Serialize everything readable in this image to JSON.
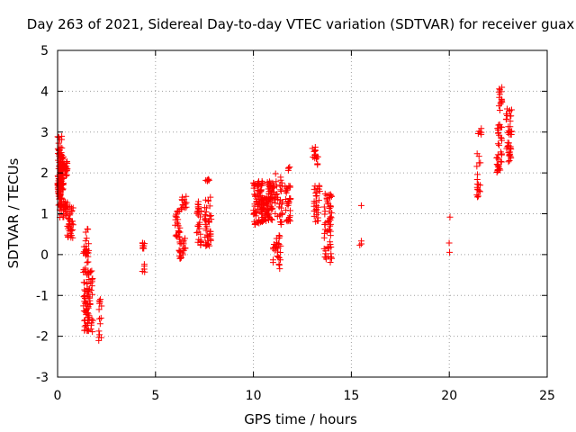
{
  "chart_data": {
    "type": "scatter",
    "title": "Day 263 of 2021, Sidereal Day-to-day VTEC variation (SDTVAR) for receiver guax",
    "xlabel": "GPS time / hours",
    "ylabel": "SDTVAR / TECUs",
    "xlim": [
      0,
      25
    ],
    "ylim": [
      -3,
      5
    ],
    "xticks": [
      0,
      5,
      10,
      15,
      20,
      25
    ],
    "yticks": [
      -3,
      -2,
      -1,
      0,
      1,
      2,
      3,
      4,
      5
    ],
    "grid": true,
    "marker": "+",
    "color": "#ff0000",
    "series": [
      {
        "name": "SDTVAR",
        "clusters": [
          {
            "x": [
              0.0,
              0.25
            ],
            "y": [
              1.2,
              2.9
            ],
            "n": 70
          },
          {
            "x": [
              0.05,
              0.3
            ],
            "y": [
              1.6,
              2.5
            ],
            "n": 50
          },
          {
            "x": [
              0.0,
              0.15
            ],
            "y": [
              1.3,
              1.9
            ],
            "n": 25
          },
          {
            "x": [
              0.1,
              0.5
            ],
            "y": [
              0.9,
              1.3
            ],
            "n": 30
          },
          {
            "x": [
              0.3,
              0.5
            ],
            "y": [
              1.9,
              2.3
            ],
            "n": 20
          },
          {
            "x": [
              0.5,
              0.8
            ],
            "y": [
              0.4,
              1.2
            ],
            "n": 35
          },
          {
            "x": [
              1.3,
              1.6
            ],
            "y": [
              -1.9,
              0.7
            ],
            "n": 70
          },
          {
            "x": [
              1.5,
              1.8
            ],
            "y": [
              -1.9,
              -0.3
            ],
            "n": 40
          },
          {
            "x": [
              2.1,
              2.25
            ],
            "y": [
              -2.2,
              -1.0
            ],
            "n": 14
          },
          {
            "x": [
              4.3,
              4.45
            ],
            "y": [
              -0.45,
              -0.2
            ],
            "n": 5
          },
          {
            "x": [
              4.3,
              4.45
            ],
            "y": [
              0.1,
              0.35
            ],
            "n": 8
          },
          {
            "x": [
              6.0,
              6.25
            ],
            "y": [
              0.3,
              1.1
            ],
            "n": 25
          },
          {
            "x": [
              6.2,
              6.55
            ],
            "y": [
              -0.1,
              0.4
            ],
            "n": 25
          },
          {
            "x": [
              6.3,
              6.6
            ],
            "y": [
              1.1,
              1.45
            ],
            "n": 15
          },
          {
            "x": [
              7.1,
              7.35
            ],
            "y": [
              0.2,
              1.3
            ],
            "n": 30
          },
          {
            "x": [
              7.5,
              7.85
            ],
            "y": [
              0.2,
              1.5
            ],
            "n": 45
          },
          {
            "x": [
              7.55,
              7.75
            ],
            "y": [
              1.7,
              1.85
            ],
            "n": 6
          },
          {
            "x": [
              10.0,
              10.5
            ],
            "y": [
              0.7,
              1.8
            ],
            "n": 80
          },
          {
            "x": [
              10.4,
              11.0
            ],
            "y": [
              0.8,
              1.4
            ],
            "n": 60
          },
          {
            "x": [
              10.7,
              11.1
            ],
            "y": [
              1.35,
              1.8
            ],
            "n": 30
          },
          {
            "x": [
              11.0,
              11.4
            ],
            "y": [
              -0.35,
              0.4
            ],
            "n": 25
          },
          {
            "x": [
              11.1,
              11.5
            ],
            "y": [
              0.4,
              2.0
            ],
            "n": 35
          },
          {
            "x": [
              11.6,
              11.9
            ],
            "y": [
              0.8,
              1.7
            ],
            "n": 30
          },
          {
            "x": [
              11.75,
              11.85
            ],
            "y": [
              2.0,
              2.2
            ],
            "n": 4
          },
          {
            "x": [
              13.0,
              13.4
            ],
            "y": [
              0.8,
              1.7
            ],
            "n": 30
          },
          {
            "x": [
              13.0,
              13.3
            ],
            "y": [
              2.2,
              2.65
            ],
            "n": 15
          },
          {
            "x": [
              13.6,
              14.0
            ],
            "y": [
              -0.2,
              1.5
            ],
            "n": 60
          },
          {
            "x": [
              15.4,
              15.55
            ],
            "y": [
              0.1,
              1.5
            ],
            "n": 4
          },
          {
            "x": [
              19.95,
              20.05
            ],
            "y": [
              -0.05,
              1.1
            ],
            "n": 3
          },
          {
            "x": [
              21.4,
              21.6
            ],
            "y": [
              1.4,
              2.5
            ],
            "n": 18
          },
          {
            "x": [
              21.45,
              21.65
            ],
            "y": [
              2.9,
              3.1
            ],
            "n": 6
          },
          {
            "x": [
              22.4,
              22.7
            ],
            "y": [
              2.0,
              3.2
            ],
            "n": 35
          },
          {
            "x": [
              22.5,
              22.7
            ],
            "y": [
              3.5,
              4.1
            ],
            "n": 15
          },
          {
            "x": [
              22.9,
              23.2
            ],
            "y": [
              2.25,
              3.6
            ],
            "n": 40
          }
        ]
      }
    ]
  }
}
